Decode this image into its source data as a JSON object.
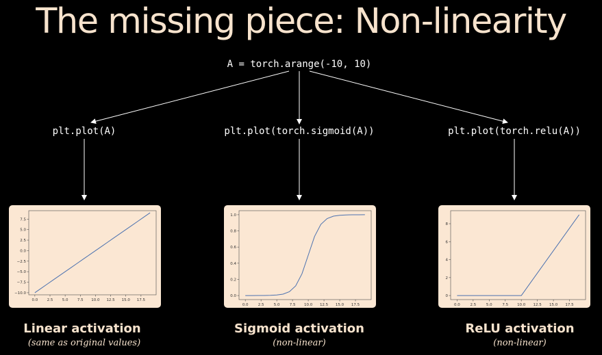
{
  "title": "The missing piece: Non-linearity",
  "root_code": "A = torch.arange(-10, 10)",
  "branches": [
    {
      "code": "plt.plot(A)",
      "label": "Linear activation",
      "sublabel": "(same as original values)"
    },
    {
      "code": "plt.plot(torch.sigmoid(A))",
      "label": "Sigmoid activation",
      "sublabel": "(non-linear)"
    },
    {
      "code": "plt.plot(torch.relu(A))",
      "label": "ReLU activation",
      "sublabel": "(non-linear)"
    }
  ],
  "colors": {
    "background": "#000000",
    "card": "#fbe7d3",
    "text": "#f7e3cd",
    "line": "#4c72b0"
  },
  "chart_data": [
    {
      "type": "line",
      "x": [
        0,
        1,
        2,
        3,
        4,
        5,
        6,
        7,
        8,
        9,
        10,
        11,
        12,
        13,
        14,
        15,
        16,
        17,
        18,
        19
      ],
      "values": [
        -10,
        -9,
        -8,
        -7,
        -6,
        -5,
        -4,
        -3,
        -2,
        -1,
        0,
        1,
        2,
        3,
        4,
        5,
        6,
        7,
        8,
        9
      ],
      "xlim": [
        -1,
        20
      ],
      "ylim": [
        -10.5,
        9.5
      ],
      "xticks": [
        0,
        2.5,
        5,
        7.5,
        10,
        12.5,
        15,
        17.5
      ],
      "xtick_labels": [
        "0.0",
        "2.5",
        "5.0",
        "7.5",
        "10.0",
        "12.5",
        "15.0",
        "17.5"
      ],
      "yticks": [
        -10,
        -7.5,
        -5,
        -2.5,
        0,
        2.5,
        5,
        7.5
      ],
      "ytick_labels": [
        "−10.0",
        "−7.5",
        "−5.0",
        "−2.5",
        "0.0",
        "2.5",
        "5.0",
        "7.5"
      ]
    },
    {
      "type": "line",
      "x": [
        0,
        1,
        2,
        3,
        4,
        5,
        6,
        7,
        8,
        9,
        10,
        11,
        12,
        13,
        14,
        15,
        16,
        17,
        18,
        19
      ],
      "values": [
        4.54e-05,
        0.000123,
        0.000335,
        0.000911,
        0.00247,
        0.00669,
        0.018,
        0.0474,
        0.1192,
        0.2689,
        0.5,
        0.7311,
        0.8808,
        0.9526,
        0.982,
        0.9933,
        0.9975,
        0.9991,
        0.9997,
        0.9999
      ],
      "xlim": [
        -1,
        20
      ],
      "ylim": [
        -0.05,
        1.05
      ],
      "xticks": [
        0,
        2.5,
        5,
        7.5,
        10,
        12.5,
        15,
        17.5
      ],
      "xtick_labels": [
        "0.0",
        "2.5",
        "5.0",
        "7.5",
        "10.0",
        "12.5",
        "15.0",
        "17.5"
      ],
      "yticks": [
        0,
        0.2,
        0.4,
        0.6,
        0.8,
        1.0
      ],
      "ytick_labels": [
        "0.0",
        "0.2",
        "0.4",
        "0.6",
        "0.8",
        "1.0"
      ]
    },
    {
      "type": "line",
      "x": [
        0,
        1,
        2,
        3,
        4,
        5,
        6,
        7,
        8,
        9,
        10,
        11,
        12,
        13,
        14,
        15,
        16,
        17,
        18,
        19
      ],
      "values": [
        0,
        0,
        0,
        0,
        0,
        0,
        0,
        0,
        0,
        0,
        0,
        1,
        2,
        3,
        4,
        5,
        6,
        7,
        8,
        9
      ],
      "xlim": [
        -1,
        20
      ],
      "ylim": [
        -0.45,
        9.45
      ],
      "xticks": [
        0,
        2.5,
        5,
        7.5,
        10,
        12.5,
        15,
        17.5
      ],
      "xtick_labels": [
        "0.0",
        "2.5",
        "5.0",
        "7.5",
        "10.0",
        "12.5",
        "15.0",
        "17.5"
      ],
      "yticks": [
        0,
        2,
        4,
        6,
        8
      ],
      "ytick_labels": [
        "0",
        "2",
        "4",
        "6",
        "8"
      ]
    }
  ]
}
